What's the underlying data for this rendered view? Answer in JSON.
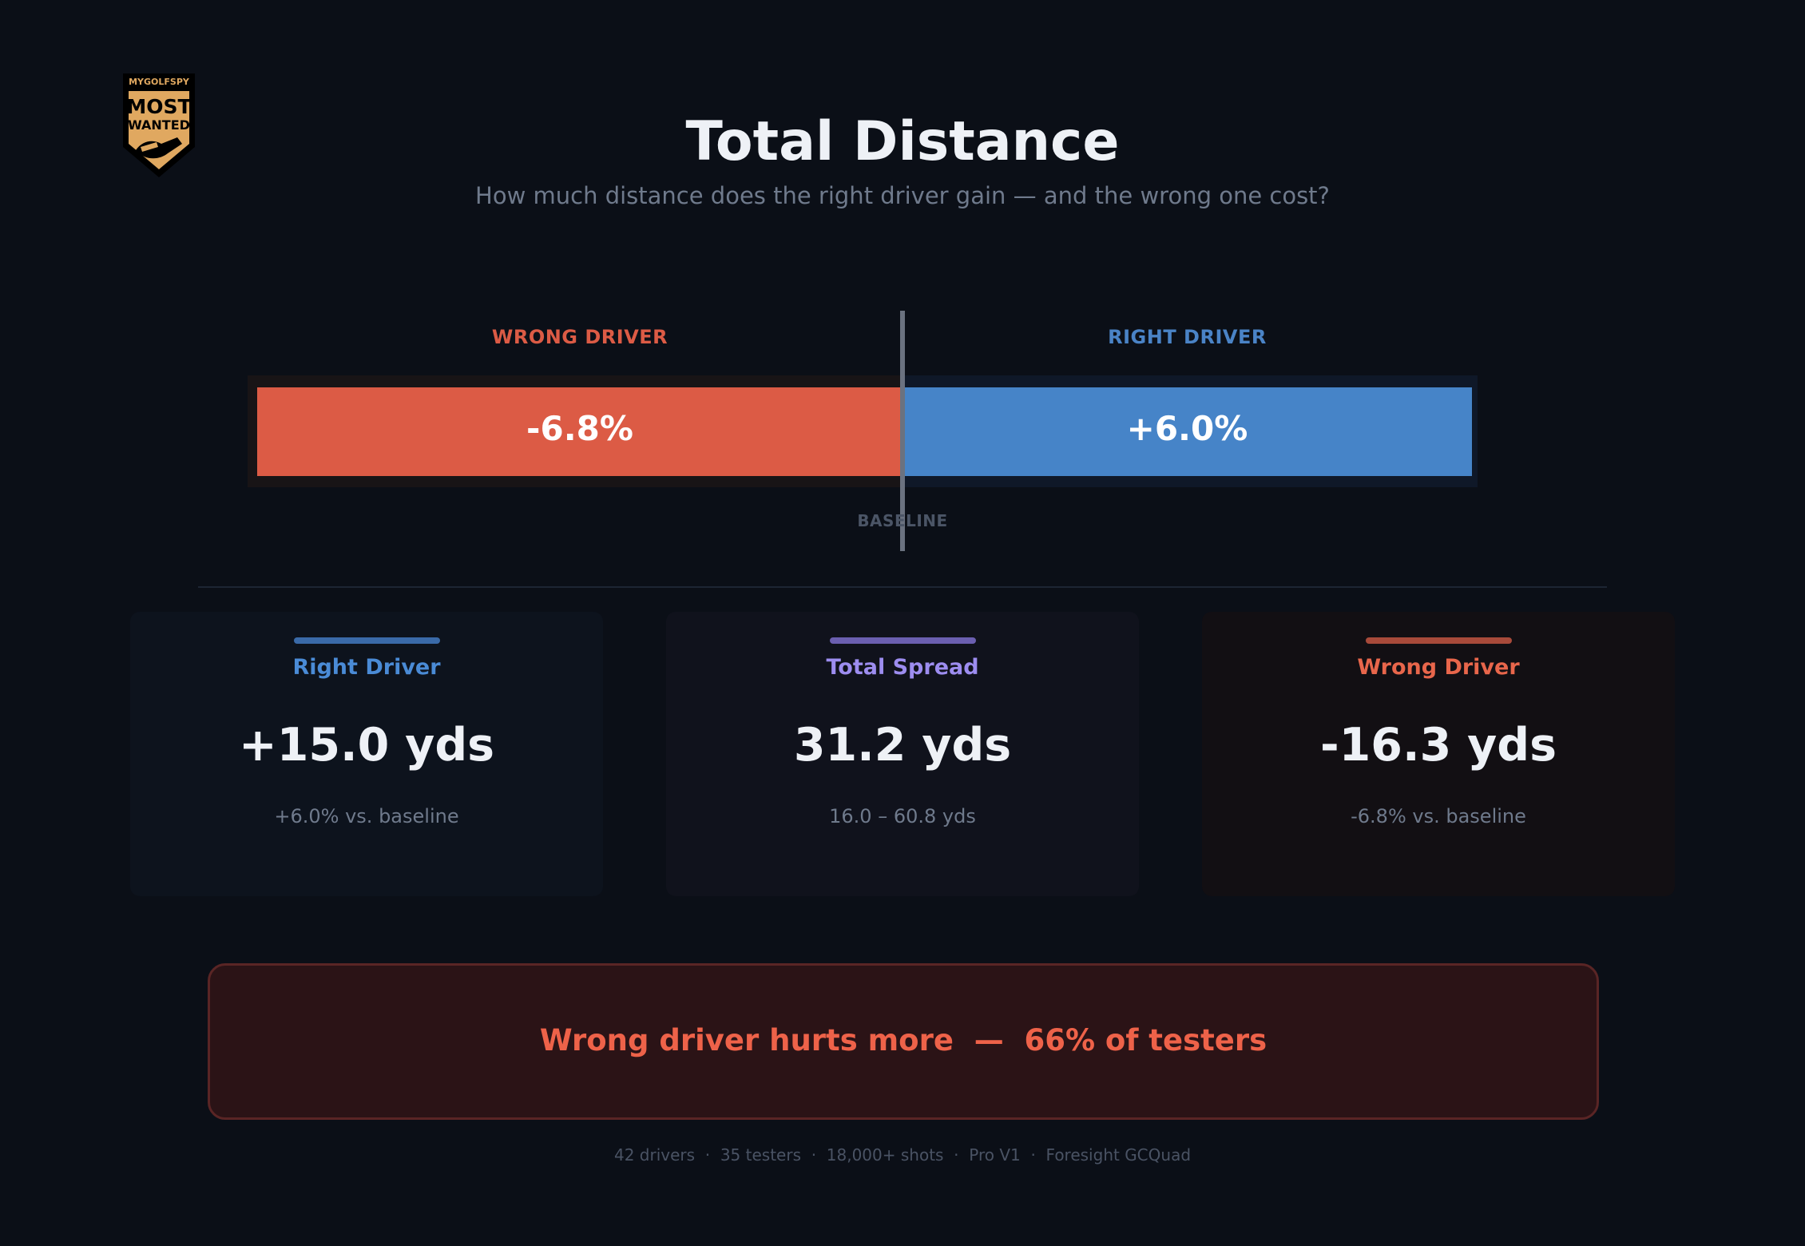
{
  "header": {
    "title": "Total Distance",
    "subtitle": "How much distance does the right driver gain — and the wrong one cost?"
  },
  "logo": {
    "top_text": "MYGOLFSPY",
    "line1": "MOST",
    "line2": "WANTED",
    "colors": {
      "badge": "#e0a860",
      "outline": "#000000"
    }
  },
  "chart_data": {
    "type": "bar",
    "orientation": "horizontal-diverging",
    "baseline_label": "BASELINE",
    "baseline_value": 0,
    "categories": [
      "WRONG DRIVER",
      "RIGHT DRIVER"
    ],
    "values": [
      -6.8,
      6.0
    ],
    "value_labels": [
      "-6.8%",
      "+6.0%"
    ],
    "colors": [
      "#dc5b45",
      "#4684c8"
    ],
    "unit": "%"
  },
  "cards": [
    {
      "label": "Right Driver",
      "value": "+15.0 yds",
      "sub": "+6.0% vs. baseline",
      "color": "#4a8bd6",
      "accent": "#3a6aa8",
      "bg": "#0d131d"
    },
    {
      "label": "Total Spread",
      "value": "31.2 yds",
      "sub": "16.0 – 60.8 yds",
      "color": "#9d8df0",
      "accent": "#6b5fb0",
      "bg": "#10121c"
    },
    {
      "label": "Wrong Driver",
      "value": "-16.3 yds",
      "sub": "-6.8% vs. baseline",
      "color": "#e8664b",
      "accent": "#a84a3a",
      "bg": "#120f13"
    }
  ],
  "callout": {
    "text": "Wrong driver hurts more  —  66% of testers"
  },
  "footer": {
    "text": "42 drivers  ·  35 testers  ·  18,000+ shots  ·  Pro V1  ·  Foresight GCQuad"
  }
}
